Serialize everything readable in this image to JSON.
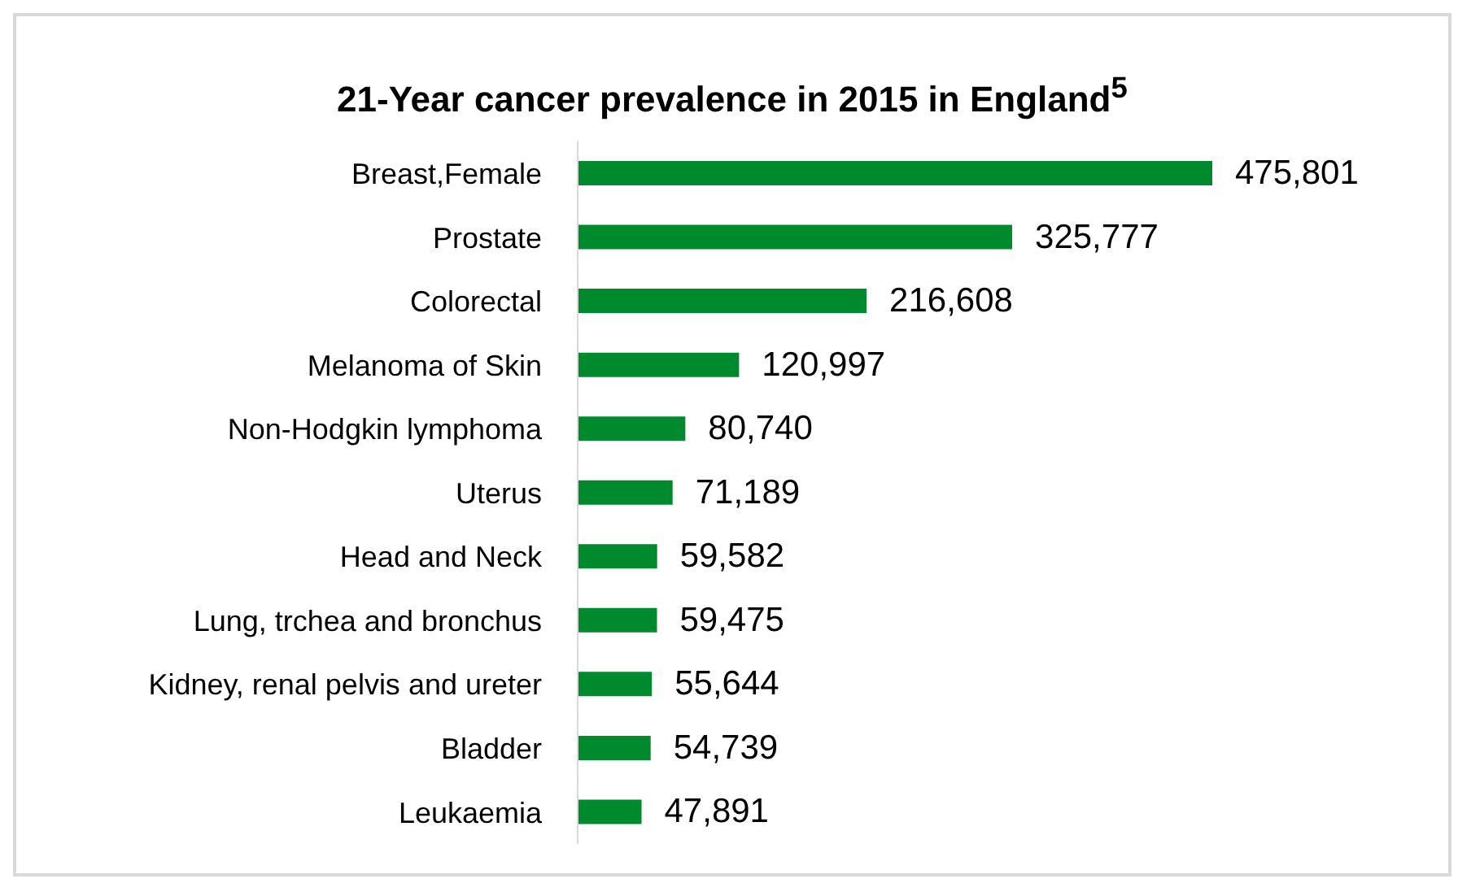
{
  "chart_data": {
    "type": "bar",
    "orientation": "horizontal",
    "title": "21-Year cancer prevalence in 2015 in England$^{5}$",
    "categories": [
      "Breast,Female",
      "Prostate",
      "Colorectal",
      "Melanoma of Skin",
      "Non-Hodgkin lymphoma",
      "Uterus",
      "Head and Neck",
      "Lung, trchea and bronchus",
      "Kidney, renal pelvis and ureter",
      "Bladder",
      "Leukaemia"
    ],
    "values": [
      475801,
      325777,
      216608,
      120997,
      80740,
      71189,
      59582,
      59475,
      55644,
      54739,
      47891
    ],
    "value_labels": [
      "475,801",
      "325,777",
      "216,608",
      "120,997",
      "80,740",
      "71,189",
      "59,582",
      "59,475",
      "55,644",
      "54,739",
      "47,891"
    ],
    "color": "#008a2e",
    "tick_labels": "y"
  }
}
